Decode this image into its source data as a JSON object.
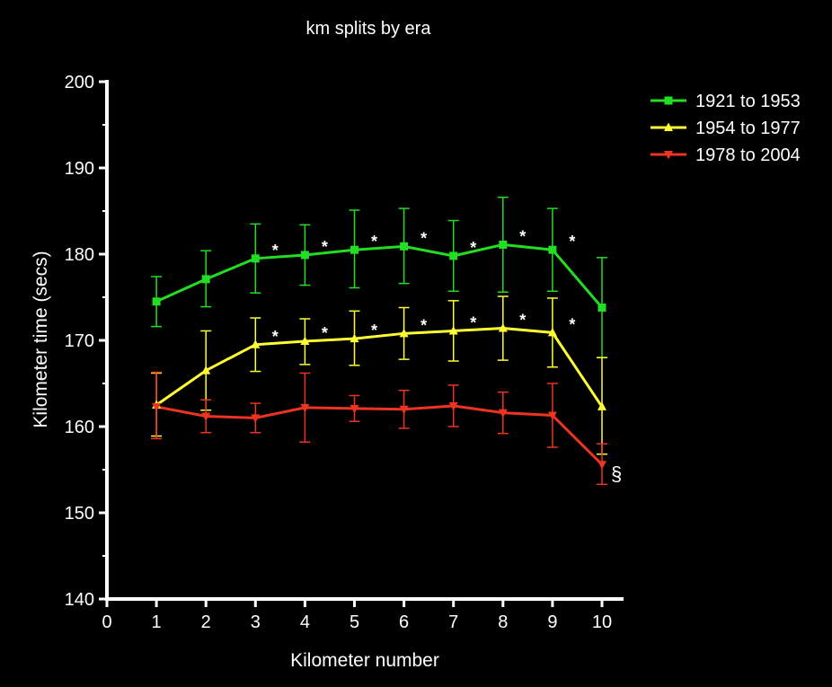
{
  "chart_data": {
    "type": "line",
    "title": "km splits by era",
    "xlabel": "Kilometer number",
    "ylabel": "Kilometer time (secs)",
    "xlim": [
      0,
      10
    ],
    "ylim": [
      140,
      200
    ],
    "x_ticks": [
      "0",
      "1",
      "2",
      "3",
      "4",
      "5",
      "6",
      "7",
      "8",
      "9",
      "10"
    ],
    "y_ticks": [
      "140",
      "150",
      "160",
      "170",
      "180",
      "190",
      "200"
    ],
    "x": [
      1,
      2,
      3,
      4,
      5,
      6,
      7,
      8,
      9,
      10
    ],
    "grid": false,
    "legend_position": "top-right",
    "series": [
      {
        "name": "1921 to 1953",
        "color": "#22dd22",
        "marker": "square",
        "values": [
          174.5,
          177.1,
          179.5,
          179.9,
          180.5,
          180.9,
          179.8,
          181.1,
          180.5,
          173.8
        ],
        "error_upper": [
          177.4,
          180.4,
          183.5,
          183.4,
          185.1,
          185.3,
          183.9,
          186.6,
          185.3,
          179.6
        ],
        "error_lower": [
          171.6,
          173.9,
          175.5,
          176.4,
          176.1,
          176.6,
          175.7,
          175.6,
          175.7,
          168.0
        ],
        "markers_text": [
          "",
          "",
          "*",
          "*",
          "*",
          "*",
          "*",
          "*",
          "*",
          ""
        ]
      },
      {
        "name": "1954 to 1977",
        "color": "#ffff33",
        "marker": "triangle-up",
        "values": [
          162.5,
          166.5,
          169.5,
          169.9,
          170.2,
          170.8,
          171.1,
          171.4,
          170.9,
          162.3
        ],
        "error_upper": [
          166.2,
          171.1,
          172.6,
          172.5,
          173.4,
          173.8,
          174.6,
          175.1,
          174.9,
          168.0
        ],
        "error_lower": [
          158.9,
          161.9,
          166.4,
          167.2,
          167.1,
          167.8,
          167.6,
          167.7,
          166.9,
          156.8
        ],
        "markers_text": [
          "",
          "",
          "*",
          "*",
          "*",
          "*",
          "*",
          "*",
          "*",
          ""
        ]
      },
      {
        "name": "1978 to 2004",
        "color": "#ee3322",
        "marker": "triangle-down",
        "values": [
          162.3,
          161.2,
          161.0,
          162.2,
          162.1,
          162.0,
          162.4,
          161.6,
          161.3,
          155.6
        ],
        "error_upper": [
          166.3,
          163.1,
          162.7,
          166.2,
          163.6,
          164.2,
          164.8,
          164.0,
          165.0,
          158.0
        ],
        "error_lower": [
          158.6,
          159.3,
          159.3,
          158.2,
          160.6,
          159.8,
          160.0,
          159.2,
          157.6,
          153.3
        ],
        "markers_text": [
          "",
          "",
          "",
          "",
          "",
          "",
          "",
          "",
          "",
          "§"
        ]
      }
    ]
  }
}
